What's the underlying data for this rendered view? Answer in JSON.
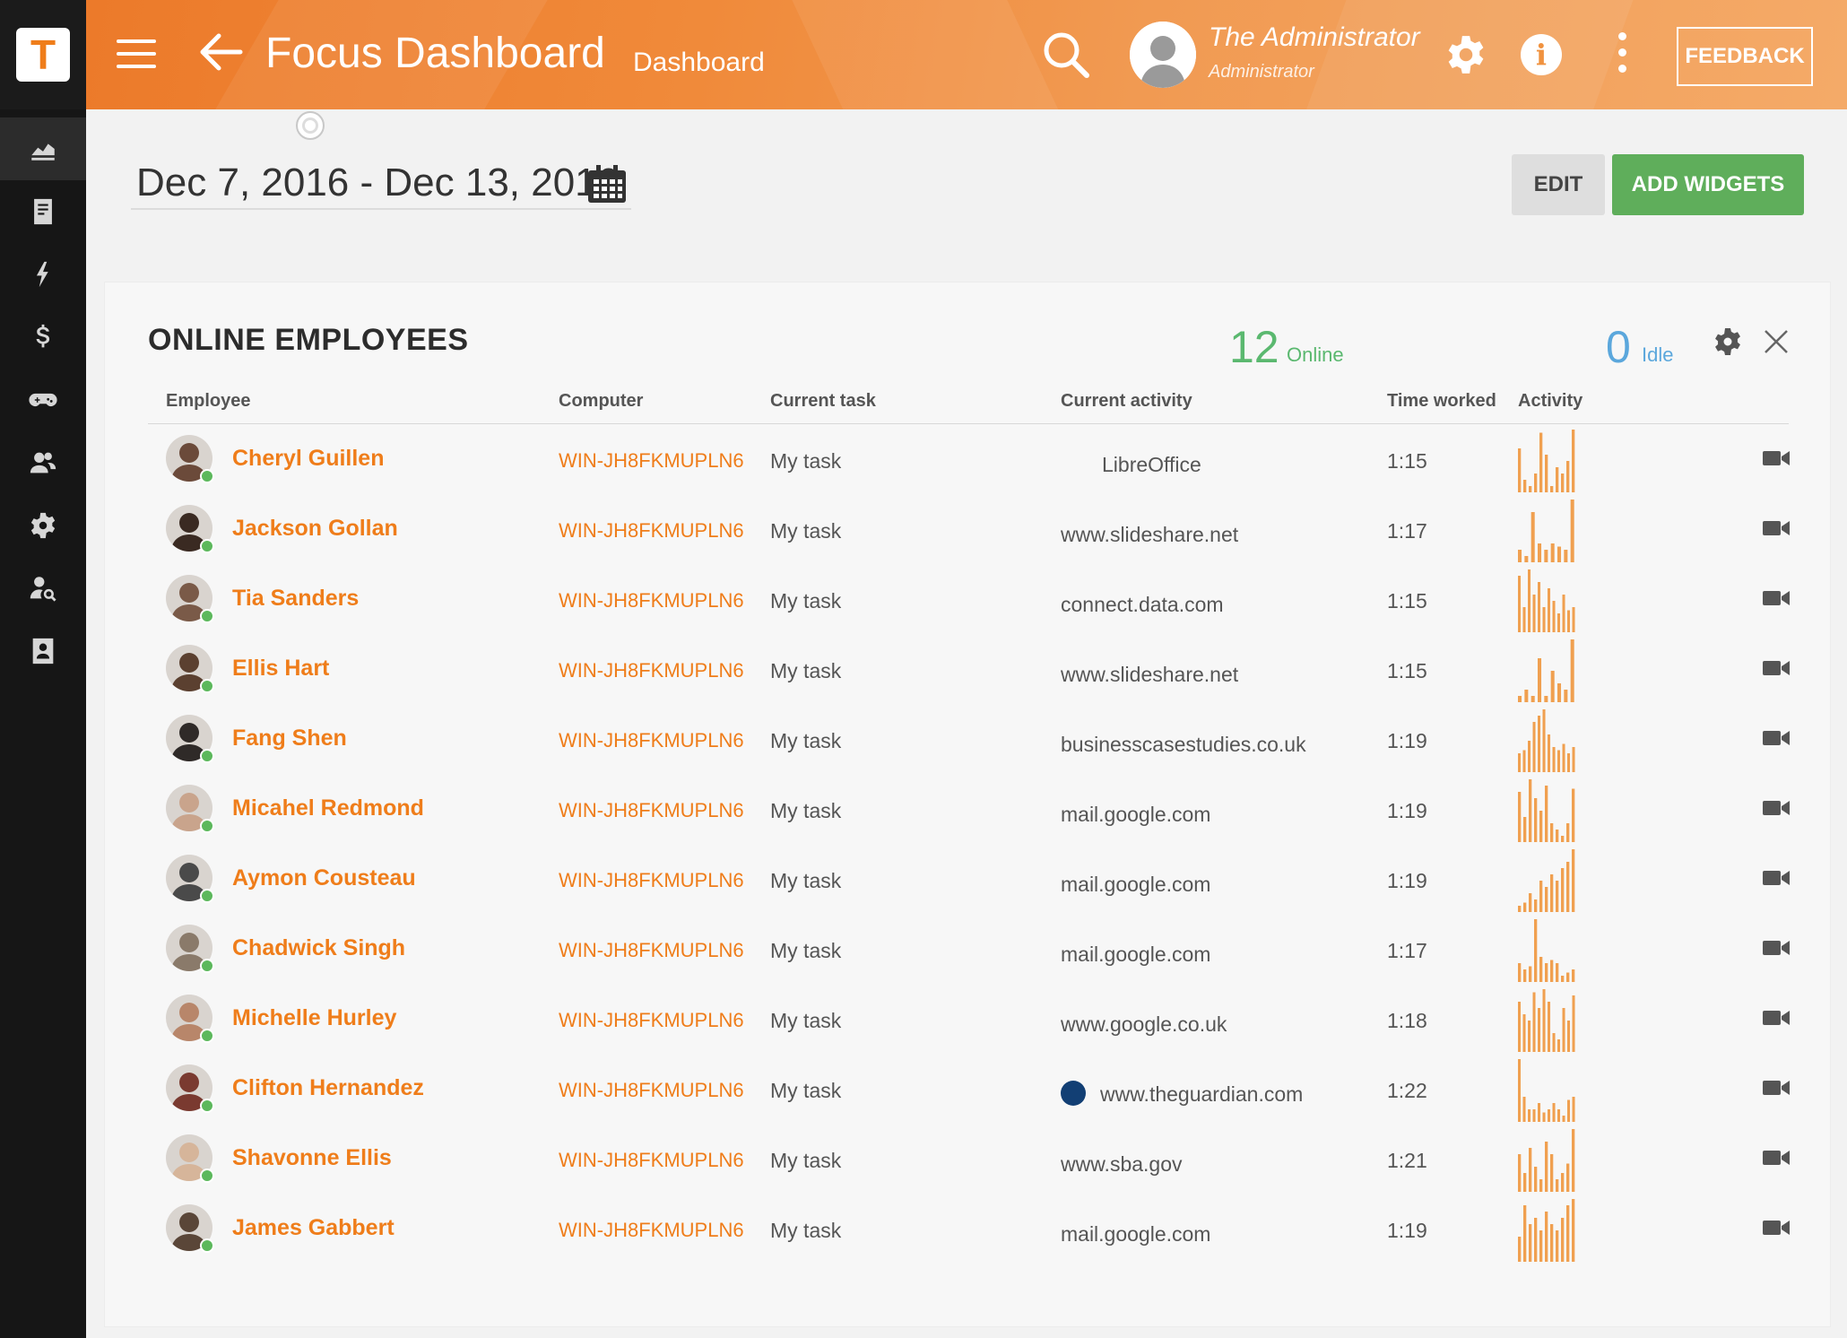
{
  "app": {
    "logo_letter": "T",
    "title": "Focus Dashboard",
    "subtitle": "Dashboard",
    "user_name": "The Administrator",
    "user_role": "Administrator",
    "info_glyph": "i",
    "feedback_label": "FEEDBACK"
  },
  "sidebar": {
    "items": [
      {
        "icon": "chart-icon",
        "active": true
      },
      {
        "icon": "document-icon"
      },
      {
        "icon": "lightning-icon"
      },
      {
        "icon": "dollar-icon"
      },
      {
        "icon": "gamepad-icon"
      },
      {
        "icon": "users-icon"
      },
      {
        "icon": "gear-icon"
      },
      {
        "icon": "user-search-icon"
      },
      {
        "icon": "contact-card-icon"
      }
    ]
  },
  "toolbar": {
    "date_range": "Dec 7, 2016 - Dec 13, 2016",
    "edit_label": "EDIT",
    "add_widgets_label": "ADD WIDGETS"
  },
  "widget": {
    "title": "ONLINE EMPLOYEES",
    "online_count": "12",
    "online_label": "Online",
    "idle_count": "0",
    "idle_label": "Idle",
    "columns": {
      "employee": "Employee",
      "computer": "Computer",
      "task": "Current task",
      "activity": "Current activity",
      "time": "Time worked",
      "activity_chart": "Activity"
    },
    "rows": [
      {
        "name": "Cheryl Guillen",
        "computer": "WIN-JH8FKMUPLN6",
        "task": "My task",
        "activity": "LibreOffice",
        "time": "1:15",
        "bars": [
          0.7,
          0.2,
          0.1,
          0.3,
          0.95,
          0.6,
          0.1,
          0.4,
          0.3,
          0.5,
          1.0
        ]
      },
      {
        "name": "Jackson Gollan",
        "computer": "WIN-JH8FKMUPLN6",
        "task": "My task",
        "activity": "www.slideshare.net",
        "time": "1:17",
        "bars": [
          0.2,
          0.1,
          0.8,
          0.3,
          0.2,
          0.3,
          0.25,
          0.2,
          1.0
        ]
      },
      {
        "name": "Tia Sanders",
        "computer": "WIN-JH8FKMUPLN6",
        "task": "My task",
        "activity": "connect.data.com",
        "time": "1:15",
        "bars": [
          0.9,
          0.4,
          1.0,
          0.6,
          0.8,
          0.4,
          0.7,
          0.5,
          0.3,
          0.6,
          0.35,
          0.4
        ]
      },
      {
        "name": "Ellis Hart",
        "computer": "WIN-JH8FKMUPLN6",
        "task": "My task",
        "activity": "www.slideshare.net",
        "time": "1:15",
        "bars": [
          0.1,
          0.2,
          0.1,
          0.7,
          0.1,
          0.5,
          0.3,
          0.2,
          1.0
        ]
      },
      {
        "name": "Fang Shen",
        "computer": "WIN-JH8FKMUPLN6",
        "task": "My task",
        "activity": "businesscasestudies.co.uk",
        "time": "1:19",
        "bars": [
          0.3,
          0.35,
          0.5,
          0.8,
          0.9,
          1.0,
          0.6,
          0.4,
          0.35,
          0.45,
          0.3,
          0.4
        ]
      },
      {
        "name": "Micahel Redmond",
        "computer": "WIN-JH8FKMUPLN6",
        "task": "My task",
        "activity": "mail.google.com",
        "time": "1:19",
        "bars": [
          0.8,
          0.4,
          1.0,
          0.7,
          0.5,
          0.9,
          0.3,
          0.2,
          0.1,
          0.3,
          0.85
        ]
      },
      {
        "name": "Aymon Cousteau",
        "computer": "WIN-JH8FKMUPLN6",
        "task": "My task",
        "activity": "mail.google.com",
        "time": "1:19",
        "bars": [
          0.1,
          0.15,
          0.3,
          0.2,
          0.5,
          0.4,
          0.6,
          0.5,
          0.7,
          0.8,
          1.0
        ]
      },
      {
        "name": "Chadwick Singh",
        "computer": "WIN-JH8FKMUPLN6",
        "task": "My task",
        "activity": "mail.google.com",
        "time": "1:17",
        "bars": [
          0.3,
          0.2,
          0.25,
          1.0,
          0.4,
          0.3,
          0.35,
          0.3,
          0.1,
          0.15,
          0.2
        ]
      },
      {
        "name": "Michelle Hurley",
        "computer": "WIN-JH8FKMUPLN6",
        "task": "My task",
        "activity": "www.google.co.uk",
        "time": "1:18",
        "bars": [
          0.8,
          0.6,
          0.5,
          0.95,
          0.7,
          1.0,
          0.8,
          0.3,
          0.2,
          0.7,
          0.5,
          0.9
        ]
      },
      {
        "name": "Clifton Hernandez",
        "computer": "WIN-JH8FKMUPLN6",
        "task": "My task",
        "activity": "www.theguardian.com",
        "time": "1:22",
        "bars": [
          1.0,
          0.4,
          0.2,
          0.2,
          0.3,
          0.15,
          0.2,
          0.3,
          0.2,
          0.1,
          0.35,
          0.4
        ]
      },
      {
        "name": "Shavonne Ellis",
        "computer": "WIN-JH8FKMUPLN6",
        "task": "My task",
        "activity": "www.sba.gov",
        "time": "1:21",
        "bars": [
          0.6,
          0.3,
          0.7,
          0.4,
          0.2,
          0.8,
          0.6,
          0.2,
          0.3,
          0.45,
          1.0
        ]
      },
      {
        "name": "James Gabbert",
        "computer": "WIN-JH8FKMUPLN6",
        "task": "My task",
        "activity": "mail.google.com",
        "time": "1:19",
        "bars": [
          0.4,
          0.9,
          0.6,
          0.7,
          0.5,
          0.8,
          0.6,
          0.5,
          0.7,
          0.9,
          1.0
        ]
      }
    ]
  },
  "colors": {
    "accent": "#ef7d1a",
    "online": "#5ab86f",
    "idle": "#5ba7dc",
    "add_button": "#5fae5b",
    "sidebar_bg": "#161616",
    "chart_bar": "#f0a050"
  }
}
